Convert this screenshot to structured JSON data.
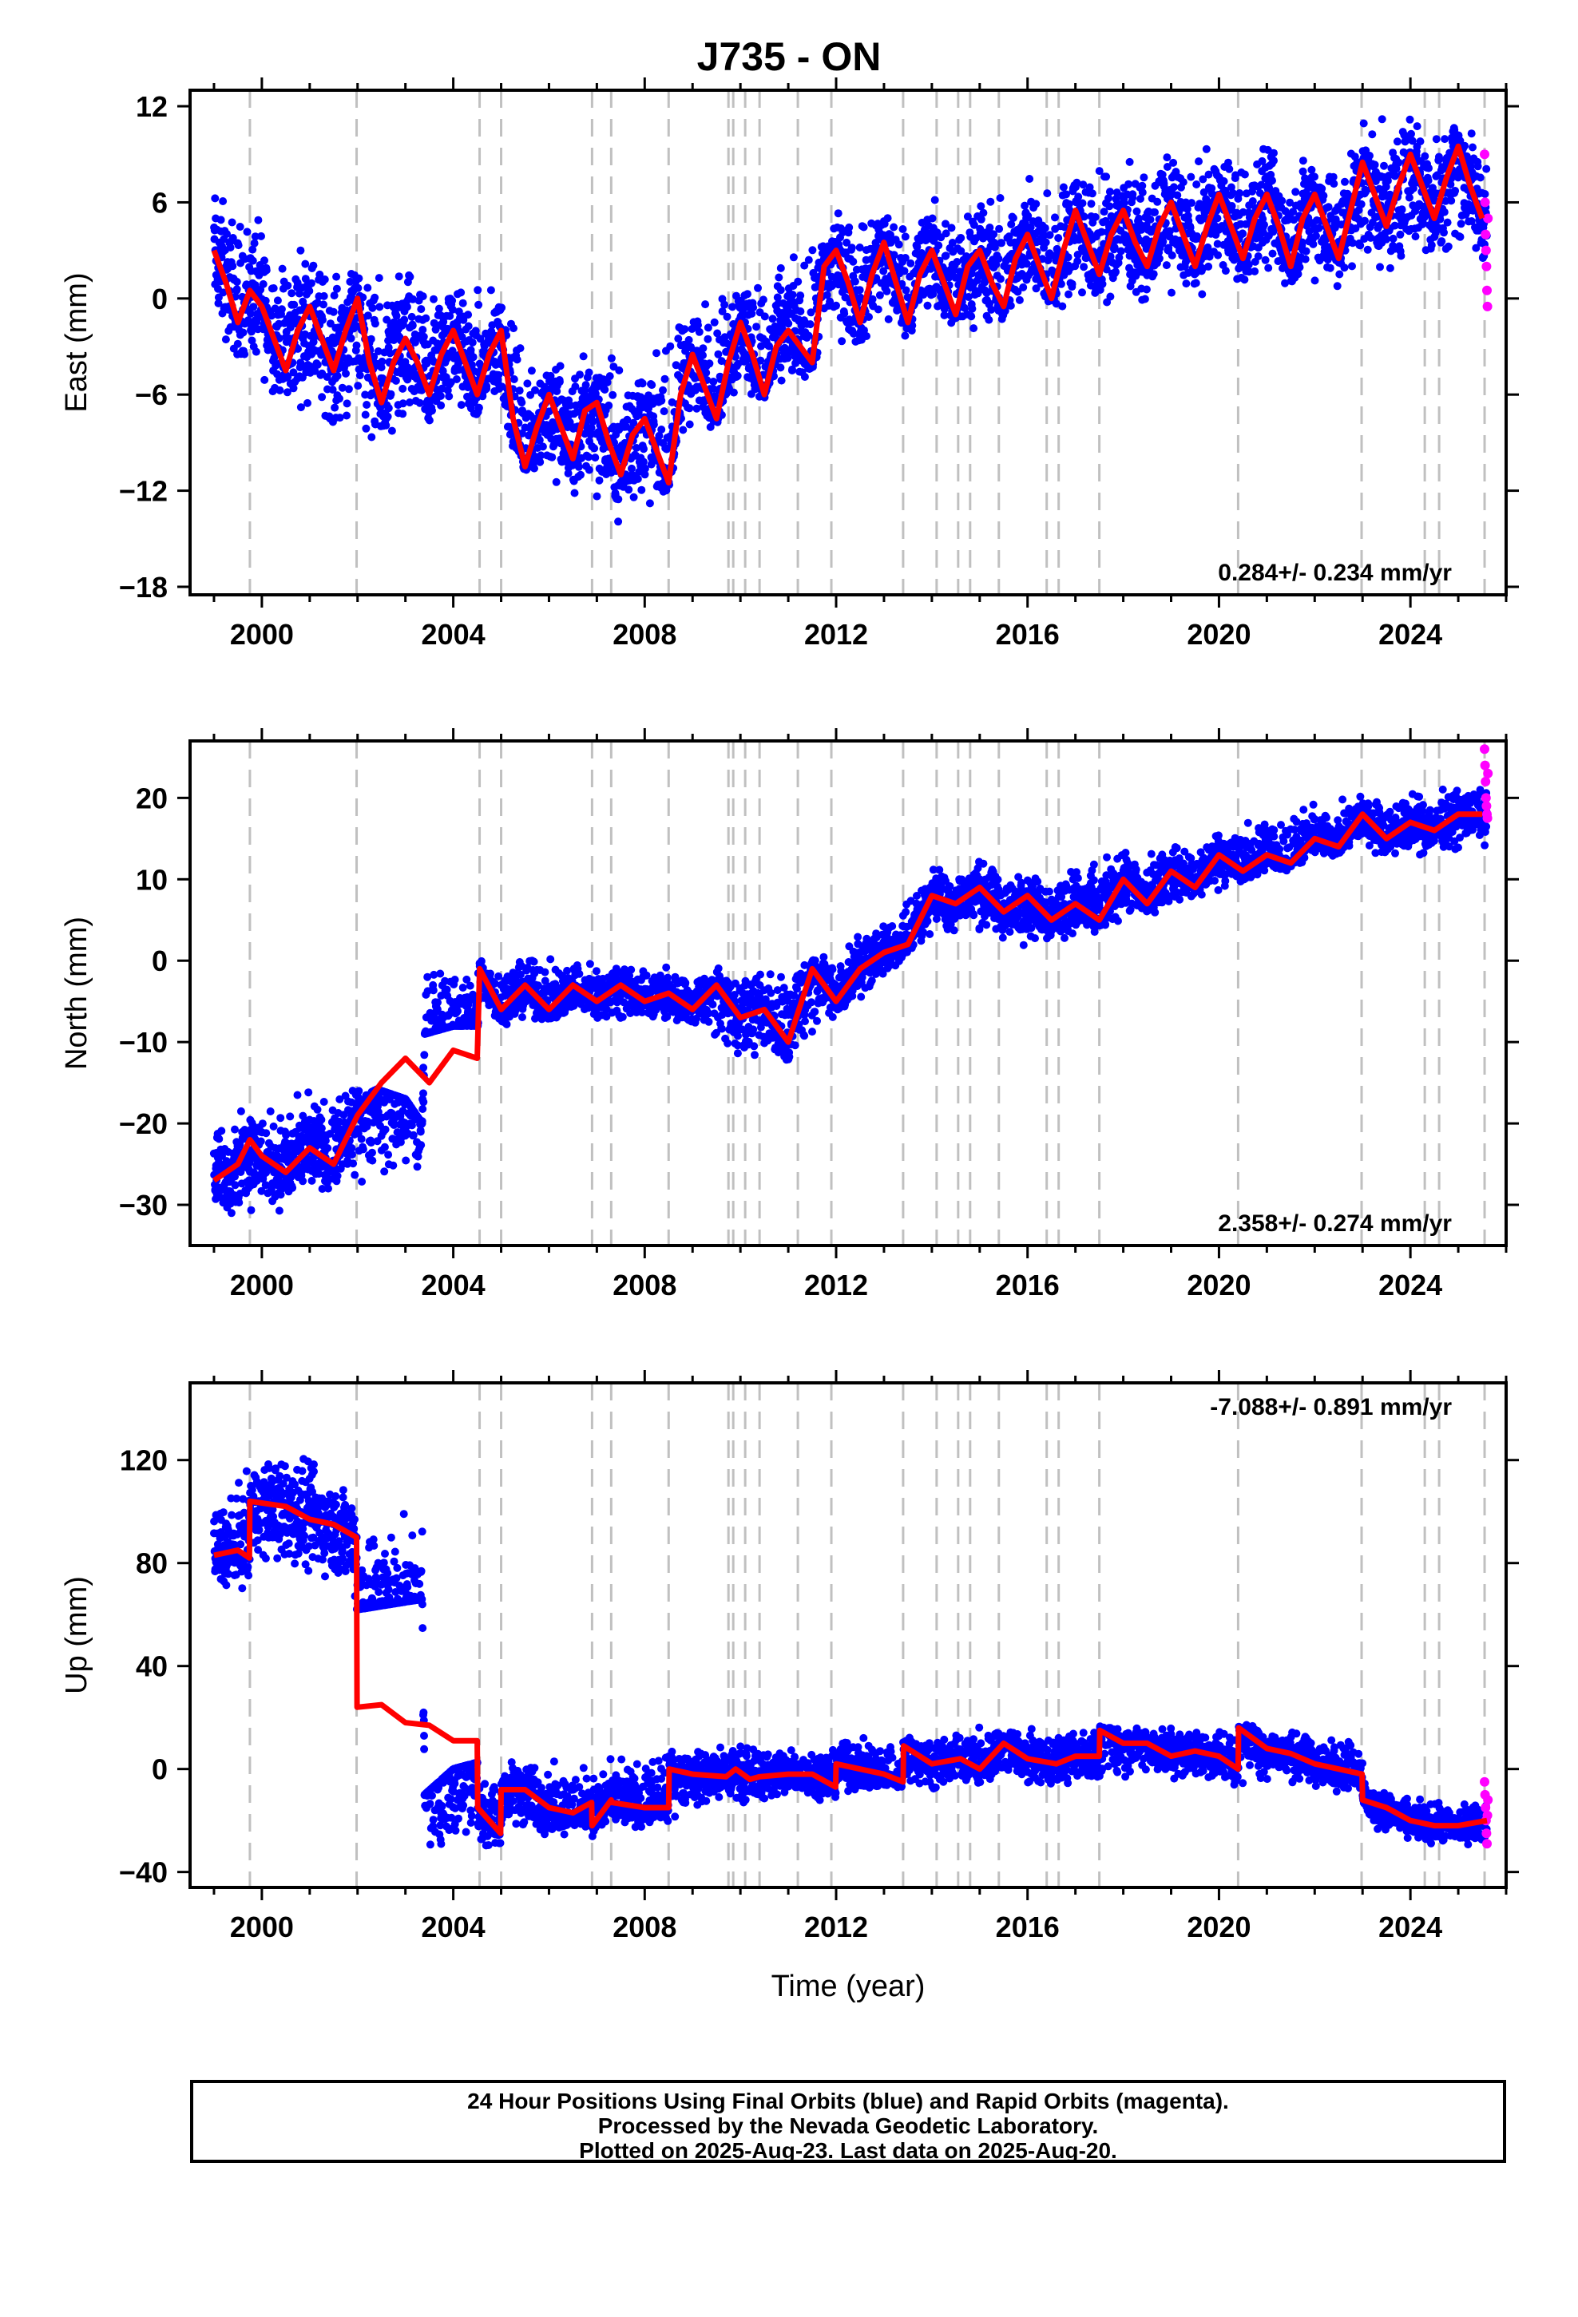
{
  "title": "J735 - ON",
  "footer": {
    "line1": "24 Hour Positions Using Final Orbits (blue) and Rapid Orbits (magenta).",
    "line2": "Processed by the Nevada Geodetic Laboratory.",
    "line3": "Plotted on 2025-Aug-23. Last data on 2025-Aug-20."
  },
  "colors": {
    "final": "#0000ff",
    "rapid": "#ff00ff",
    "model": "#ff0000",
    "steps": "#c0c0c0"
  },
  "chart_data": [
    {
      "type": "scatter",
      "panel": "east",
      "ylabel": "East (mm)",
      "xlim": [
        1998.5,
        2026.0
      ],
      "ylim": [
        -18.5,
        13.0
      ],
      "xticks": [
        2000,
        2004,
        2008,
        2012,
        2016,
        2020,
        2024
      ],
      "xtick_labels": [
        "2000",
        "2004",
        "2008",
        "2012",
        "2016",
        "2020",
        "2024"
      ],
      "yticks": [
        -18,
        -12,
        -6,
        0,
        6,
        12
      ],
      "ytick_labels": [
        "−18",
        "−12",
        "−6",
        "0",
        "6",
        "12"
      ],
      "show_xlabel": false,
      "rate_text": "0.284+/- 0.234 mm/yr",
      "rate_position": "bottom-right",
      "model": {
        "name": "model",
        "x": [
          1999.0,
          1999.25,
          1999.5,
          1999.75,
          2000.0,
          2000.25,
          2000.5,
          2000.75,
          2001.0,
          2001.25,
          2001.5,
          2001.75,
          2002.0,
          2002.25,
          2002.5,
          2002.75,
          2003.0,
          2003.25,
          2003.5,
          2003.75,
          2004.0,
          2004.25,
          2004.5,
          2004.75,
          2005.0,
          2005.25,
          2005.5,
          2005.75,
          2006.0,
          2006.25,
          2006.5,
          2006.75,
          2007.0,
          2007.25,
          2007.5,
          2007.75,
          2008.0,
          2008.25,
          2008.5,
          2008.75,
          2009.0,
          2009.25,
          2009.5,
          2009.75,
          2010.0,
          2010.25,
          2010.5,
          2010.75,
          2011.0,
          2011.25,
          2011.5,
          2011.75,
          2012.0,
          2012.25,
          2012.5,
          2012.75,
          2013.0,
          2013.25,
          2013.5,
          2013.75,
          2014.0,
          2014.25,
          2014.5,
          2014.75,
          2015.0,
          2015.25,
          2015.5,
          2015.75,
          2016.0,
          2016.25,
          2016.5,
          2016.75,
          2017.0,
          2017.25,
          2017.5,
          2017.75,
          2018.0,
          2018.25,
          2018.5,
          2018.75,
          2019.0,
          2019.25,
          2019.5,
          2019.75,
          2020.0,
          2020.25,
          2020.5,
          2020.75,
          2021.0,
          2021.25,
          2021.5,
          2021.75,
          2022.0,
          2022.25,
          2022.5,
          2022.75,
          2023.0,
          2023.25,
          2023.5,
          2023.75,
          2024.0,
          2024.25,
          2024.5,
          2024.75,
          2025.0,
          2025.25,
          2025.5
        ],
        "y": [
          3.0,
          1.0,
          -1.5,
          0.5,
          -0.5,
          -2.5,
          -4.5,
          -2.0,
          -0.5,
          -2.5,
          -4.5,
          -2.0,
          0.0,
          -4.0,
          -6.5,
          -4.0,
          -2.5,
          -4.0,
          -6.0,
          -3.5,
          -2.0,
          -4.0,
          -6.0,
          -3.5,
          -2.0,
          -7.5,
          -10.5,
          -8.0,
          -6.0,
          -8.0,
          -10.0,
          -7.0,
          -6.5,
          -9.0,
          -11.0,
          -8.5,
          -7.5,
          -9.5,
          -11.5,
          -6.0,
          -3.5,
          -5.5,
          -7.5,
          -4.0,
          -1.5,
          -3.5,
          -6.0,
          -3.0,
          -2.0,
          -3.0,
          -4.0,
          2.0,
          3.0,
          1.0,
          -1.5,
          1.5,
          3.5,
          1.0,
          -1.5,
          1.5,
          3.0,
          1.0,
          -1.0,
          2.0,
          3.0,
          1.0,
          -0.5,
          2.5,
          4.0,
          2.0,
          0.0,
          3.0,
          5.5,
          3.5,
          1.5,
          4.0,
          5.5,
          3.5,
          2.0,
          4.5,
          6.0,
          4.0,
          2.0,
          4.5,
          6.5,
          4.5,
          2.5,
          5.0,
          6.5,
          4.5,
          2.0,
          5.0,
          6.5,
          4.5,
          2.5,
          5.5,
          8.5,
          6.5,
          4.5,
          7.0,
          9.0,
          7.0,
          5.0,
          7.5,
          9.5,
          7.0,
          5.0
        ]
      },
      "scatter_band": {
        "x": [
          1999.0,
          2000.0,
          2001.0,
          2002.0,
          2003.0,
          2004.0,
          2005.0,
          2006.0,
          2007.0,
          2008.0,
          2009.0,
          2010.0,
          2011.0,
          2012.0,
          2013.0,
          2014.0,
          2015.0,
          2016.0,
          2017.0,
          2018.0,
          2019.0,
          2020.0,
          2021.0,
          2022.0,
          2023.0,
          2024.0,
          2025.0,
          2025.6
        ],
        "lower": [
          -3,
          -6,
          -8,
          -10,
          -11,
          -8,
          -9,
          -13,
          -14,
          -15,
          -9,
          -7,
          -6,
          -4,
          -3,
          -2,
          -3,
          -1,
          -1,
          -1,
          0,
          0,
          0,
          0,
          0,
          1,
          2,
          1
        ],
        "upper": [
          8,
          6,
          4,
          2,
          3,
          2,
          1,
          -3,
          -2,
          -3,
          1,
          3,
          3,
          6,
          7,
          7,
          7,
          8,
          9,
          9,
          10,
          10,
          10,
          10,
          11,
          12,
          12,
          10
        ]
      },
      "rapid": {
        "x": [
          2025.55,
          2025.56,
          2025.57,
          2025.58,
          2025.59,
          2025.6,
          2025.61,
          2025.62
        ],
        "y": [
          9.0,
          6.0,
          4.0,
          3.0,
          2.0,
          0.5,
          -0.5,
          5.0
        ]
      }
    },
    {
      "type": "scatter",
      "panel": "north",
      "ylabel": "North (mm)",
      "xlim": [
        1998.5,
        2026.0
      ],
      "ylim": [
        -35.0,
        27.0
      ],
      "xticks": [
        2000,
        2004,
        2008,
        2012,
        2016,
        2020,
        2024
      ],
      "xtick_labels": [
        "2000",
        "2004",
        "2008",
        "2012",
        "2016",
        "2020",
        "2024"
      ],
      "yticks": [
        -30,
        -20,
        -10,
        0,
        10,
        20
      ],
      "ytick_labels": [
        "−30",
        "−20",
        "−10",
        "0",
        "10",
        "20"
      ],
      "show_xlabel": false,
      "rate_text": "2.358+/- 0.274 mm/yr",
      "rate_position": "bottom-right",
      "model": {
        "name": "model",
        "x": [
          1999.0,
          1999.5,
          1999.75,
          2000.0,
          2000.5,
          2001.0,
          2001.5,
          2002.0,
          2002.5,
          2003.0,
          2003.5,
          2004.0,
          2004.5,
          2004.55,
          2005.0,
          2005.5,
          2006.0,
          2006.5,
          2007.0,
          2007.5,
          2008.0,
          2008.5,
          2009.0,
          2009.5,
          2010.0,
          2010.5,
          2011.0,
          2011.5,
          2012.0,
          2012.5,
          2013.0,
          2013.5,
          2014.0,
          2014.5,
          2015.0,
          2015.5,
          2016.0,
          2016.5,
          2017.0,
          2017.5,
          2018.0,
          2018.5,
          2019.0,
          2019.5,
          2020.0,
          2020.5,
          2021.0,
          2021.5,
          2022.0,
          2022.5,
          2023.0,
          2023.5,
          2024.0,
          2024.5,
          2025.0,
          2025.5
        ],
        "y": [
          -27.0,
          -25.0,
          -22.0,
          -24.0,
          -26.0,
          -23.0,
          -25.0,
          -19.0,
          -15.0,
          -12.0,
          -15.0,
          -11.0,
          -12.0,
          -1.0,
          -6.0,
          -3.0,
          -6.0,
          -3.0,
          -5.0,
          -3.0,
          -5.0,
          -4.0,
          -6.0,
          -3.0,
          -7.0,
          -6.0,
          -10.0,
          -1.0,
          -5.0,
          -1.0,
          1.0,
          2.0,
          8.0,
          7.0,
          9.0,
          6.0,
          8.0,
          5.0,
          7.0,
          5.0,
          10.0,
          7.0,
          11.0,
          9.0,
          13.0,
          11.0,
          13.0,
          12.0,
          15.0,
          14.0,
          18.0,
          15.0,
          17.0,
          16.0,
          18.0,
          18.0
        ]
      },
      "scatter_band": {
        "x": [
          1999.0,
          2000.0,
          2001.0,
          2002.0,
          2003.0,
          2003.35,
          2003.4,
          2004.0,
          2005.0,
          2006.0,
          2007.0,
          2008.0,
          2009.0,
          2010.0,
          2011.0,
          2012.0,
          2013.0,
          2014.0,
          2015.0,
          2016.0,
          2017.0,
          2018.0,
          2019.0,
          2020.0,
          2021.0,
          2022.0,
          2023.0,
          2024.0,
          2025.0,
          2025.6
        ],
        "lower": [
          -32,
          -33,
          -30,
          -28,
          -30,
          -31,
          -9,
          -8,
          -8,
          -8,
          -8,
          -8,
          -9,
          -13,
          -13,
          -8,
          -3,
          3,
          2,
          1,
          2,
          4,
          6,
          8,
          10,
          12,
          13,
          12,
          13,
          14
        ],
        "upper": [
          -19,
          -17,
          -15,
          -15,
          -17,
          -20,
          0,
          2,
          1,
          1,
          1,
          0,
          -1,
          0,
          1,
          2,
          6,
          12,
          13,
          11,
          13,
          14,
          15,
          17,
          19,
          20,
          21,
          21,
          22,
          22
        ]
      },
      "rapid": {
        "x": [
          2025.55,
          2025.56,
          2025.57,
          2025.58,
          2025.59,
          2025.6,
          2025.61,
          2025.62
        ],
        "y": [
          26.0,
          24.0,
          22.0,
          20.0,
          19.0,
          18.0,
          17.5,
          23.0
        ]
      }
    },
    {
      "type": "scatter",
      "panel": "up",
      "ylabel": "Up (mm)",
      "xlabel": "Time (year)",
      "xlim": [
        1998.5,
        2026.0
      ],
      "ylim": [
        -46.0,
        150.0
      ],
      "xticks": [
        2000,
        2004,
        2008,
        2012,
        2016,
        2020,
        2024
      ],
      "xtick_labels": [
        "2000",
        "2004",
        "2008",
        "2012",
        "2016",
        "2020",
        "2024"
      ],
      "yticks": [
        -40,
        0,
        40,
        80,
        120
      ],
      "ytick_labels": [
        "−40",
        "0",
        "40",
        "80",
        "120"
      ],
      "show_xlabel": true,
      "rate_text": "-7.088+/- 0.891 mm/yr",
      "rate_position": "top-right",
      "model": {
        "name": "model",
        "x": [
          1999.0,
          1999.5,
          1999.74,
          1999.75,
          2000.5,
          2001.0,
          2001.5,
          2001.98,
          2001.99,
          2002.5,
          2003.0,
          2003.5,
          2004.0,
          2004.5,
          2004.51,
          2004.99,
          2005.0,
          2005.5,
          2006.0,
          2006.5,
          2006.89,
          2006.9,
          2007.3,
          2007.31,
          2008.0,
          2008.5,
          2008.51,
          2009.0,
          2009.7,
          2009.9,
          2010.2,
          2010.4,
          2011.0,
          2011.5,
          2011.99,
          2012.0,
          2012.5,
          2013.0,
          2013.4,
          2013.41,
          2014.0,
          2014.6,
          2015.0,
          2015.5,
          2016.0,
          2016.6,
          2017.0,
          2017.5,
          2017.51,
          2018.0,
          2018.5,
          2019.0,
          2019.5,
          2020.0,
          2020.4,
          2020.41,
          2021.0,
          2021.5,
          2022.0,
          2022.5,
          2022.99,
          2023.0,
          2023.5,
          2024.0,
          2024.5,
          2025.0,
          2025.6
        ],
        "y": [
          83,
          85,
          82,
          104,
          102,
          97,
          95,
          90,
          24,
          25,
          18,
          17,
          11,
          11,
          -15,
          -25,
          -8,
          -8,
          -15,
          -17,
          -13,
          -22,
          -12,
          -13,
          -15,
          -15,
          0,
          -2,
          -3,
          0,
          -4,
          -3,
          -2,
          -2,
          -7,
          2,
          0,
          -2,
          -5,
          9,
          2,
          4,
          0,
          10,
          4,
          2,
          5,
          5,
          15,
          10,
          10,
          5,
          7,
          5,
          0,
          16,
          8,
          6,
          2,
          0,
          -2,
          -12,
          -15,
          -20,
          -22,
          -22,
          -20
        ]
      },
      "scatter_band": {
        "x": [
          1999.0,
          2000.0,
          2001.0,
          2002.0,
          2003.0,
          2003.35,
          2003.4,
          2004.0,
          2005.0,
          2006.0,
          2007.0,
          2008.0,
          2009.0,
          2010.0,
          2011.0,
          2012.0,
          2013.0,
          2014.0,
          2015.0,
          2016.0,
          2017.0,
          2018.0,
          2019.0,
          2020.0,
          2021.0,
          2022.0,
          2023.0,
          2023.1,
          2024.0,
          2025.0,
          2025.6
        ],
        "lower": [
          65,
          72,
          68,
          62,
          65,
          66,
          -37,
          -40,
          -30,
          -28,
          -27,
          -25,
          -18,
          -16,
          -14,
          -12,
          -10,
          -10,
          -8,
          -8,
          -8,
          -6,
          -6,
          -8,
          -8,
          -10,
          -10,
          -25,
          -30,
          -32,
          -30
        ],
        "upper": [
          110,
          125,
          125,
          110,
          100,
          95,
          -10,
          0,
          5,
          5,
          5,
          8,
          10,
          12,
          12,
          12,
          15,
          15,
          18,
          18,
          18,
          18,
          18,
          18,
          18,
          15,
          15,
          -5,
          -10,
          -12,
          -10
        ]
      },
      "rapid": {
        "x": [
          2025.55,
          2025.56,
          2025.57,
          2025.58,
          2025.59,
          2025.6,
          2025.61,
          2025.62
        ],
        "y": [
          -5.0,
          -10.0,
          -15.0,
          -20.0,
          -25.0,
          -29.0,
          -18.0,
          -12.0
        ]
      }
    }
  ],
  "event_lines": [
    1999.75,
    2001.98,
    2004.55,
    2005.0,
    2006.9,
    2007.3,
    2008.5,
    2009.75,
    2009.85,
    2010.1,
    2010.4,
    2011.2,
    2011.9,
    2013.4,
    2014.1,
    2014.55,
    2014.8,
    2015.4,
    2016.4,
    2016.65,
    2017.5,
    2020.4,
    2022.98,
    2024.3,
    2024.6,
    2025.55
  ]
}
